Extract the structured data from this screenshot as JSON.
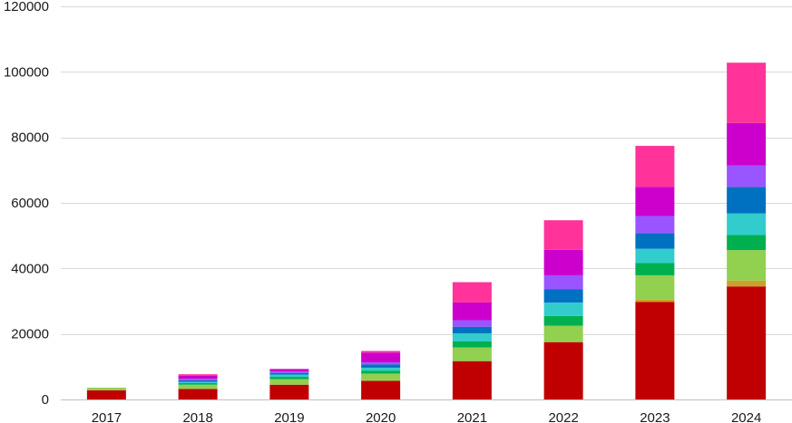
{
  "chart_data": {
    "type": "bar",
    "stacked": true,
    "title": "",
    "xlabel": "",
    "ylabel": "",
    "ylim": [
      0,
      120000
    ],
    "yticks": [
      0,
      20000,
      40000,
      60000,
      80000,
      100000,
      120000
    ],
    "grid": true,
    "legend": "none",
    "categories": [
      "2017",
      "2018",
      "2019",
      "2020",
      "2021",
      "2022",
      "2023",
      "2024"
    ],
    "series": [
      {
        "color": "#c00000",
        "values": [
          2800,
          3200,
          4500,
          5700,
          11700,
          17500,
          29800,
          34500
        ]
      },
      {
        "color": "#c9a227",
        "values": [
          0,
          0,
          0,
          0,
          0,
          0,
          700,
          1800
        ]
      },
      {
        "color": "#92d050",
        "values": [
          800,
          1300,
          1700,
          2200,
          4200,
          5000,
          7400,
          9300
        ]
      },
      {
        "color": "#00b050",
        "values": [
          0,
          500,
          700,
          900,
          1800,
          3000,
          3800,
          4600
        ]
      },
      {
        "color": "#33cccc",
        "values": [
          0,
          400,
          700,
          900,
          2500,
          4100,
          4300,
          6600
        ]
      },
      {
        "color": "#0070c0",
        "values": [
          0,
          400,
          500,
          1000,
          2000,
          4100,
          4800,
          8100
        ]
      },
      {
        "color": "#9955ff",
        "values": [
          0,
          500,
          500,
          600,
          2000,
          4200,
          5200,
          6500
        ]
      },
      {
        "color": "#cc00cc",
        "values": [
          0,
          900,
          700,
          3000,
          5400,
          7800,
          8900,
          13000
        ]
      },
      {
        "color": "#ff3399",
        "values": [
          0,
          500,
          0,
          500,
          6200,
          9000,
          12500,
          18400
        ]
      }
    ]
  }
}
